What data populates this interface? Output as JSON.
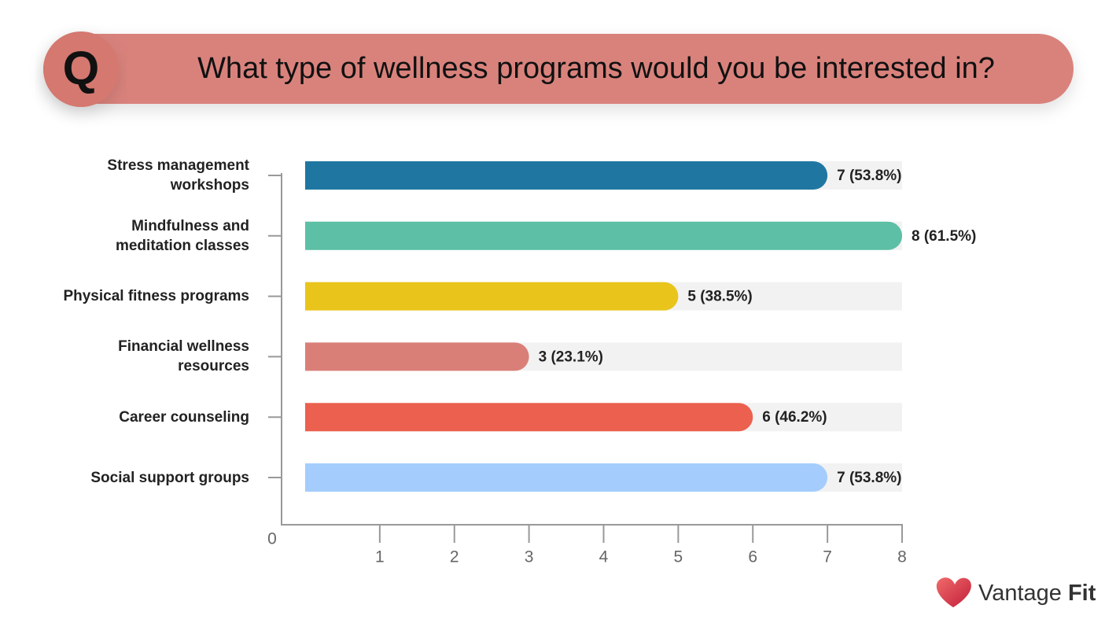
{
  "badge": "Q",
  "brand": {
    "name": "Vantage",
    "emphasis": "Fit"
  },
  "chart_data": {
    "type": "bar",
    "orientation": "horizontal",
    "title": "What type of wellness programs would you be interested in?",
    "categories": [
      "Stress management workshops",
      "Mindfulness and meditation classes",
      "Physical fitness programs",
      "Financial wellness resources",
      "Career counseling",
      "Social support groups"
    ],
    "values": [
      7,
      8,
      5,
      3,
      6,
      7
    ],
    "value_labels": [
      "7 (53.8%)",
      "8 (61.5%)",
      "5 (38.5%)",
      "3 (23.1%)",
      "6 (46.2%)",
      "7 (53.8%)"
    ],
    "colors": [
      "#1f77a1",
      "#5cbfa6",
      "#e9c41b",
      "#da7f78",
      "#ec604f",
      "#a4cdfd"
    ],
    "xlim": [
      0,
      8
    ],
    "xticks": [
      0,
      1,
      2,
      3,
      4,
      5,
      6,
      7,
      8
    ]
  }
}
